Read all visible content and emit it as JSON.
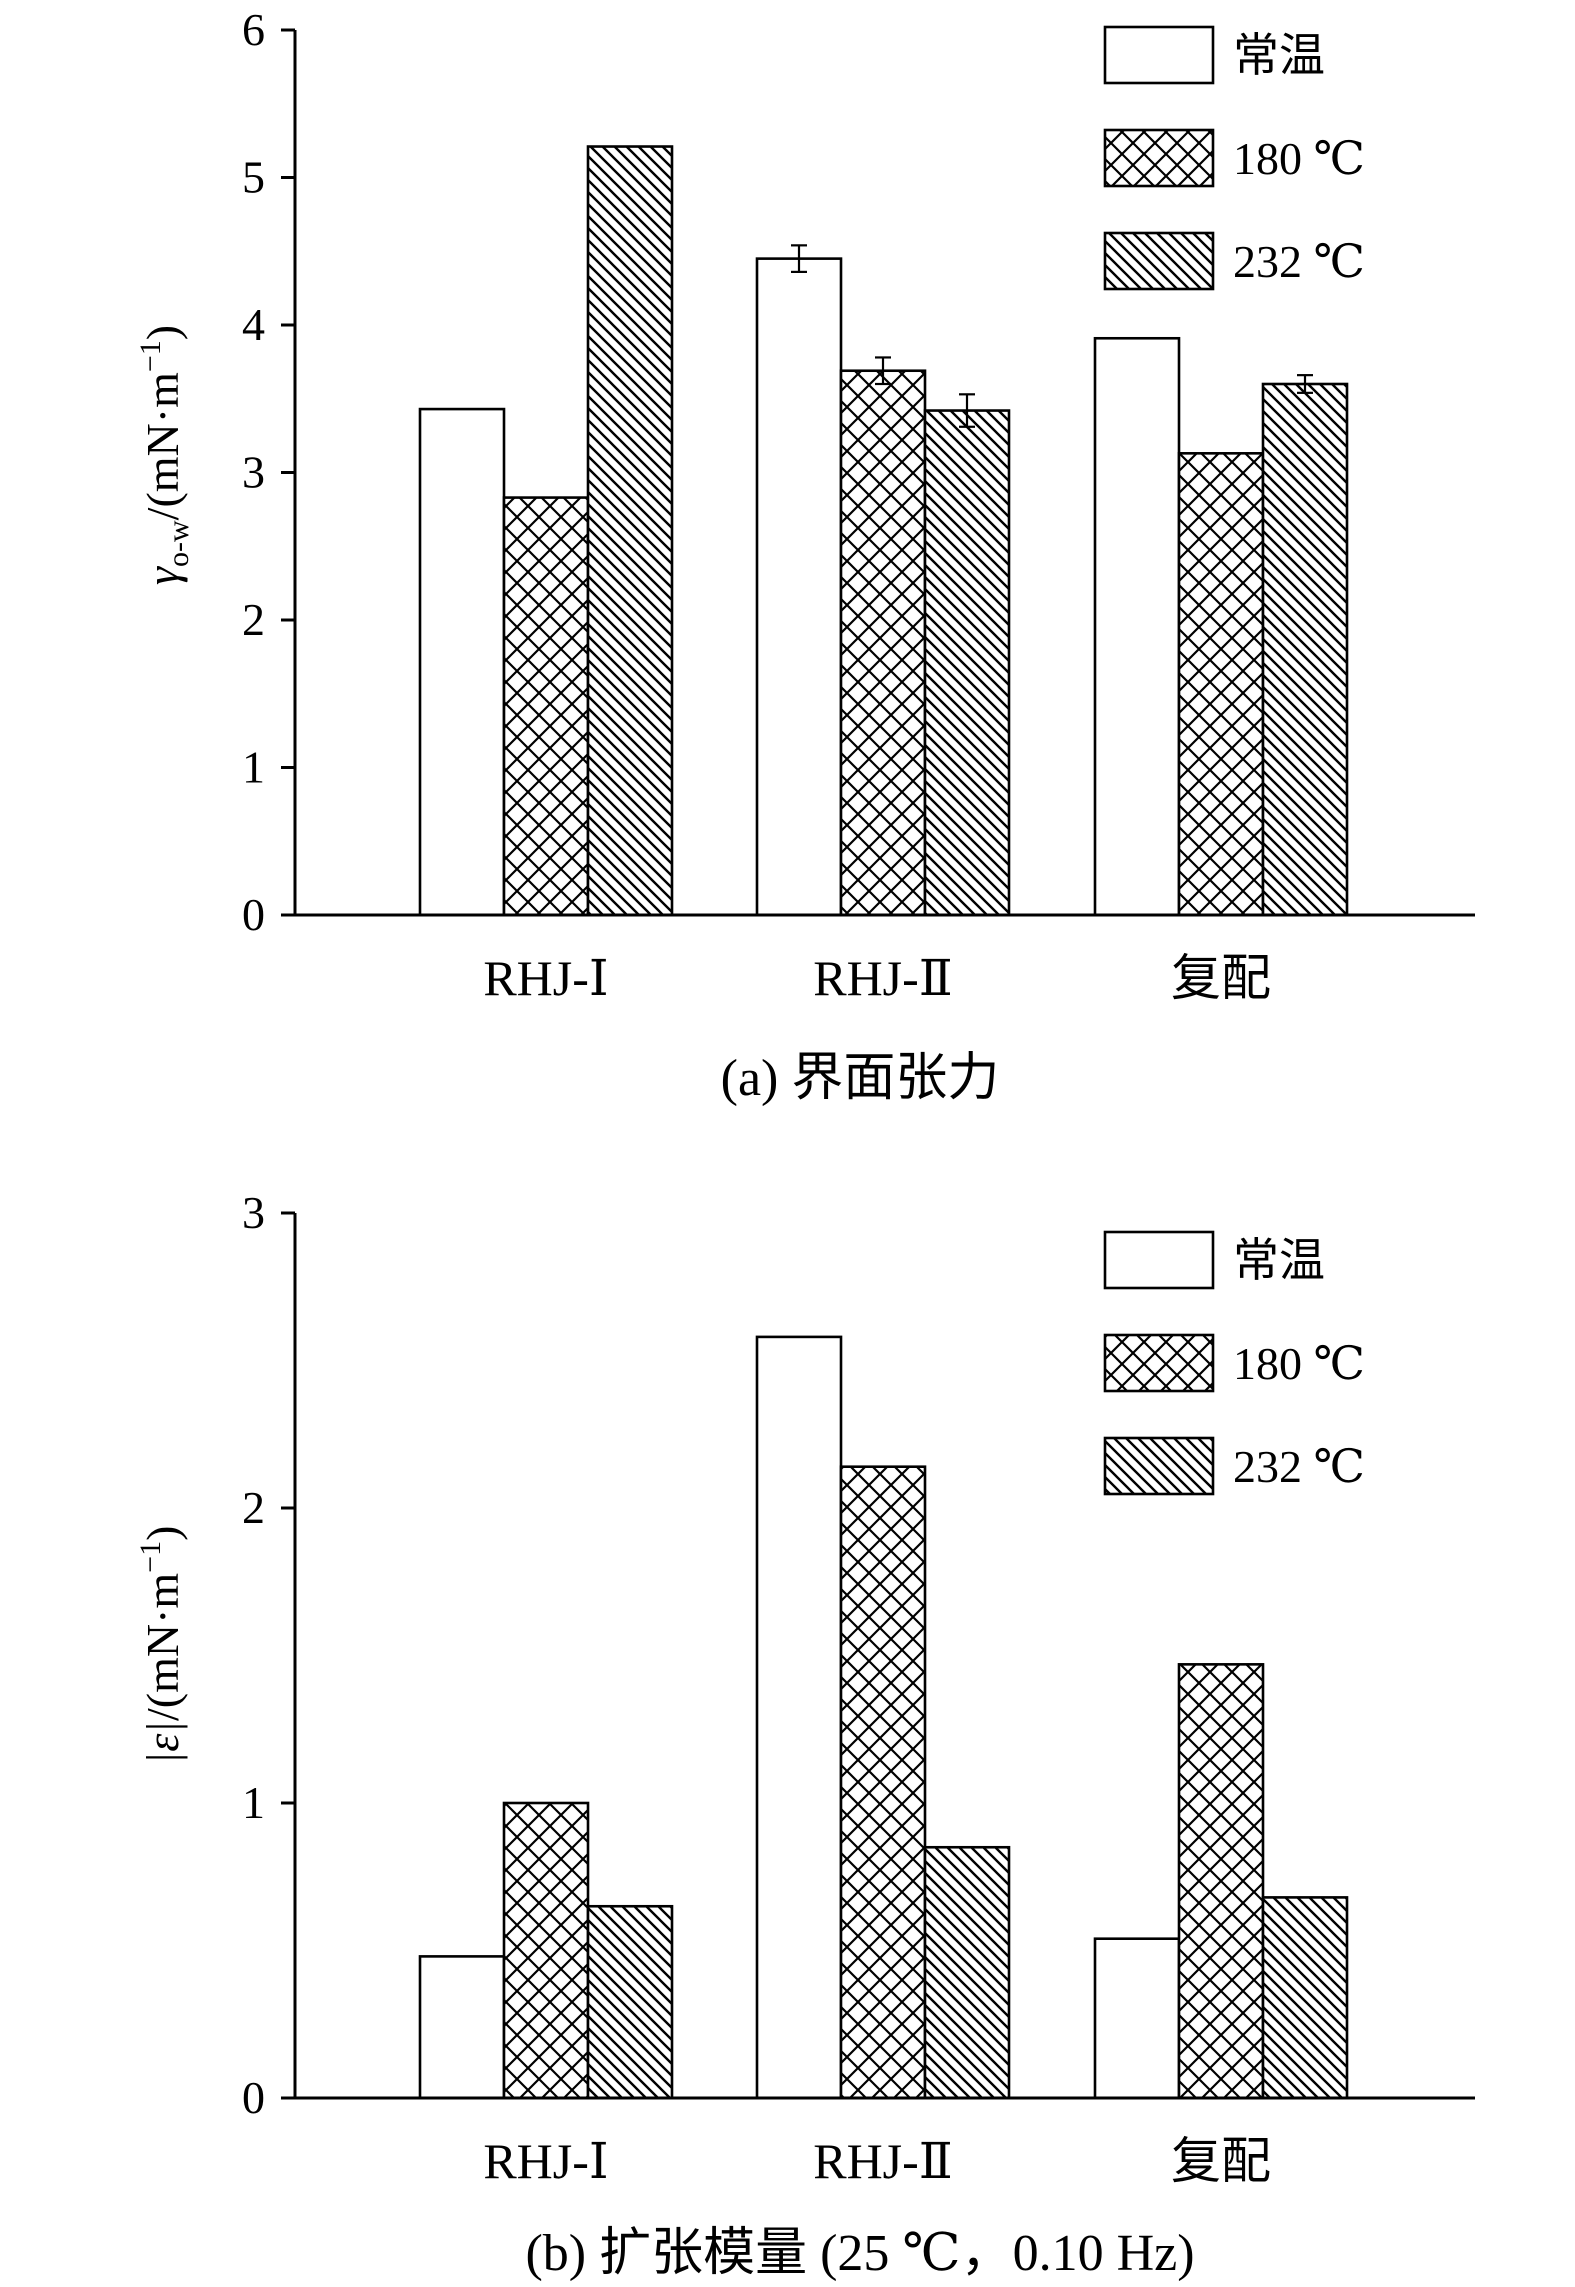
{
  "chart_data": [
    {
      "type": "bar",
      "title": "(a) 界面张力",
      "ylabel": "γo-w/(mN·m−1)",
      "ylabel_parts": {
        "symbol": "γ",
        "subscript": "o-w",
        "unit_prefix": "/(mN·m",
        "superscript": "−1",
        "unit_suffix": ")"
      },
      "ylim": [
        0,
        6
      ],
      "yticks": [
        "0",
        "1",
        "2",
        "3",
        "4",
        "5",
        "6"
      ],
      "categories": [
        "RHJ-Ⅰ",
        "RHJ-Ⅱ",
        "复配"
      ],
      "series": [
        {
          "name": "常温",
          "values": [
            3.43,
            4.45,
            3.91
          ],
          "errors": [
            null,
            0.09,
            null
          ]
        },
        {
          "name": "180 ℃",
          "values": [
            2.83,
            3.69,
            3.13
          ],
          "errors": [
            null,
            0.09,
            null
          ]
        },
        {
          "name": "232 ℃",
          "values": [
            5.21,
            3.42,
            3.6
          ],
          "errors": [
            null,
            0.11,
            0.06
          ]
        }
      ],
      "legend_position": "top-right",
      "grid": false
    },
    {
      "type": "bar",
      "title": "(b) 扩张模量 (25 ℃，0.10 Hz)",
      "ylabel": "|ε|/(mN·m−1)",
      "ylabel_parts": {
        "symbol": "|ε|",
        "subscript": "",
        "unit_prefix": "/(mN·m",
        "superscript": "−1",
        "unit_suffix": ")"
      },
      "ylim": [
        0,
        3
      ],
      "yticks": [
        "0",
        "1",
        "2",
        "3"
      ],
      "categories": [
        "RHJ-Ⅰ",
        "RHJ-Ⅱ",
        "复配"
      ],
      "series": [
        {
          "name": "常温",
          "values": [
            0.48,
            2.58,
            0.54
          ]
        },
        {
          "name": "180 ℃",
          "values": [
            1.0,
            2.14,
            1.47
          ]
        },
        {
          "name": "232 ℃",
          "values": [
            0.65,
            0.85,
            0.68
          ]
        }
      ],
      "legend_position": "top-right",
      "grid": false
    }
  ]
}
